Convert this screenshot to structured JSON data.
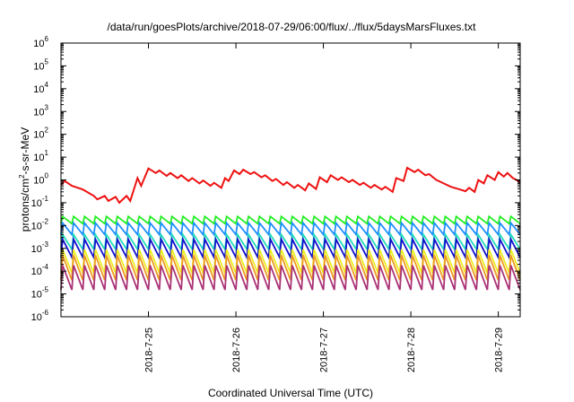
{
  "chart_data": {
    "type": "line",
    "title": "/data/run/goesPlots/archive/2018-07-29/06:00/flux/../flux/5daysMarsFluxes.txt",
    "xlabel": "Coordinated Universal Time (UTC)",
    "ylabel_parts": [
      "protons/cm",
      "2",
      "-s-sr-MeV"
    ],
    "y_scale": "log",
    "ylim": [
      1e-06,
      1000000.0
    ],
    "y_ticks": [
      {
        "base": "10",
        "exp": "6",
        "value": 1000000.0
      },
      {
        "base": "10",
        "exp": "5",
        "value": 100000.0
      },
      {
        "base": "10",
        "exp": "4",
        "value": 10000.0
      },
      {
        "base": "10",
        "exp": "3",
        "value": 1000.0
      },
      {
        "base": "10",
        "exp": "2",
        "value": 100.0
      },
      {
        "base": "10",
        "exp": "1",
        "value": 10.0
      },
      {
        "base": "10",
        "exp": "0",
        "value": 1
      },
      {
        "base": "10",
        "exp": "-1",
        "value": 0.1
      },
      {
        "base": "10",
        "exp": "-2",
        "value": 0.01
      },
      {
        "base": "10",
        "exp": "-3",
        "value": 0.001
      },
      {
        "base": "10",
        "exp": "-4",
        "value": 0.0001
      },
      {
        "base": "10",
        "exp": "-5",
        "value": 1e-05
      },
      {
        "base": "10",
        "exp": "-6",
        "value": 1e-06
      }
    ],
    "x_scale": "date",
    "xlim": [
      "2018-07-24T00:00",
      "2018-07-29T06:00"
    ],
    "x_ticks": [
      {
        "label": "2018-7-25",
        "value": "2018-07-25T00:00"
      },
      {
        "label": "2018-7-26",
        "value": "2018-07-26T00:00"
      },
      {
        "label": "2018-7-27",
        "value": "2018-07-27T00:00"
      },
      {
        "label": "2018-7-28",
        "value": "2018-07-28T00:00"
      },
      {
        "label": "2018-7-29",
        "value": "2018-07-29T00:00"
      }
    ],
    "grid": false,
    "legend": "none",
    "series": [
      {
        "color": "#ee1111",
        "points": [
          [
            "2018-07-24T00:00",
            0.6
          ],
          [
            "2018-07-24T01:00",
            0.9
          ],
          [
            "2018-07-24T03:00",
            0.55
          ],
          [
            "2018-07-24T06:00",
            0.38
          ],
          [
            "2018-07-24T09:00",
            0.2
          ],
          [
            "2018-07-24T10:00",
            0.14
          ],
          [
            "2018-07-24T12:00",
            0.2
          ],
          [
            "2018-07-24T13:00",
            0.12
          ],
          [
            "2018-07-24T15:00",
            0.18
          ],
          [
            "2018-07-24T16:00",
            0.1
          ],
          [
            "2018-07-24T18:00",
            0.2
          ],
          [
            "2018-07-24T19:00",
            0.12
          ],
          [
            "2018-07-24T21:00",
            1.2
          ],
          [
            "2018-07-24T22:00",
            0.55
          ],
          [
            "2018-07-25T00:00",
            3.2
          ],
          [
            "2018-07-25T02:00",
            2.0
          ],
          [
            "2018-07-25T03:00",
            2.6
          ],
          [
            "2018-07-25T05:00",
            1.5
          ],
          [
            "2018-07-25T06:00",
            2.0
          ],
          [
            "2018-07-25T08:00",
            1.2
          ],
          [
            "2018-07-25T09:00",
            1.6
          ],
          [
            "2018-07-25T11:00",
            0.9
          ],
          [
            "2018-07-25T12:00",
            1.2
          ],
          [
            "2018-07-25T14:00",
            0.7
          ],
          [
            "2018-07-25T15:00",
            0.95
          ],
          [
            "2018-07-25T17:00",
            0.55
          ],
          [
            "2018-07-25T18:00",
            0.75
          ],
          [
            "2018-07-25T20:00",
            0.45
          ],
          [
            "2018-07-25T21:00",
            1.2
          ],
          [
            "2018-07-25T22:00",
            0.9
          ],
          [
            "2018-07-25T23:30",
            2.6
          ],
          [
            "2018-07-26T01:00",
            1.8
          ],
          [
            "2018-07-26T02:00",
            2.8
          ],
          [
            "2018-07-26T04:00",
            1.8
          ],
          [
            "2018-07-26T05:00",
            2.2
          ],
          [
            "2018-07-26T07:00",
            1.3
          ],
          [
            "2018-07-26T08:00",
            1.6
          ],
          [
            "2018-07-26T10:00",
            0.9
          ],
          [
            "2018-07-26T11:00",
            1.1
          ],
          [
            "2018-07-26T13:00",
            0.6
          ],
          [
            "2018-07-26T14:00",
            0.8
          ],
          [
            "2018-07-26T16:00",
            0.45
          ],
          [
            "2018-07-26T17:00",
            0.6
          ],
          [
            "2018-07-26T19:00",
            0.35
          ],
          [
            "2018-07-26T20:00",
            0.7
          ],
          [
            "2018-07-26T22:00",
            0.4
          ],
          [
            "2018-07-26T23:00",
            1.3
          ],
          [
            "2018-07-27T01:00",
            0.8
          ],
          [
            "2018-07-27T02:00",
            1.6
          ],
          [
            "2018-07-27T04:00",
            1.0
          ],
          [
            "2018-07-27T05:00",
            1.3
          ],
          [
            "2018-07-27T07:00",
            0.8
          ],
          [
            "2018-07-27T08:00",
            1.0
          ],
          [
            "2018-07-27T10:00",
            0.6
          ],
          [
            "2018-07-27T11:00",
            0.75
          ],
          [
            "2018-07-27T13:00",
            0.45
          ],
          [
            "2018-07-27T14:00",
            0.6
          ],
          [
            "2018-07-27T16:00",
            0.38
          ],
          [
            "2018-07-27T17:00",
            0.5
          ],
          [
            "2018-07-27T19:00",
            0.3
          ],
          [
            "2018-07-27T20:00",
            1.2
          ],
          [
            "2018-07-27T22:00",
            0.9
          ],
          [
            "2018-07-27T23:00",
            3.4
          ],
          [
            "2018-07-28T01:00",
            2.2
          ],
          [
            "2018-07-28T02:00",
            2.8
          ],
          [
            "2018-07-28T04:00",
            1.6
          ],
          [
            "2018-07-28T05:00",
            1.8
          ],
          [
            "2018-07-28T07:00",
            1.0
          ],
          [
            "2018-07-28T09:00",
            0.7
          ],
          [
            "2018-07-28T11:00",
            0.5
          ],
          [
            "2018-07-28T13:00",
            0.4
          ],
          [
            "2018-07-28T15:00",
            0.32
          ],
          [
            "2018-07-28T16:00",
            0.45
          ],
          [
            "2018-07-28T17:30",
            0.3
          ],
          [
            "2018-07-28T18:30",
            1.0
          ],
          [
            "2018-07-28T20:00",
            0.7
          ],
          [
            "2018-07-28T21:00",
            1.6
          ],
          [
            "2018-07-28T23:00",
            1.0
          ],
          [
            "2018-07-29T00:00",
            2.2
          ],
          [
            "2018-07-29T01:30",
            1.4
          ],
          [
            "2018-07-29T02:30",
            2.0
          ],
          [
            "2018-07-29T04:00",
            1.2
          ],
          [
            "2018-07-29T05:00",
            1.0
          ],
          [
            "2018-07-29T06:00",
            0.75
          ]
        ]
      },
      {
        "color": "#22ee22",
        "sawtooth": {
          "start": "2018-07-24T00:00",
          "end": "2018-07-29T06:00",
          "period_hours": 3,
          "high": 0.025,
          "low": 0.012
        }
      },
      {
        "color": "#1e90ff",
        "sawtooth": {
          "start": "2018-07-24T00:00",
          "end": "2018-07-29T06:00",
          "period_hours": 3,
          "high": 0.013,
          "low": 0.004
        }
      },
      {
        "color": "#22ddbb",
        "sawtooth": {
          "start": "2018-07-24T00:00",
          "end": "2018-07-29T06:00",
          "period_hours": 3,
          "high": 0.004,
          "low": 0.0009
        }
      },
      {
        "color": "#1111cc",
        "sawtooth": {
          "start": "2018-07-24T00:00",
          "end": "2018-07-29T06:00",
          "period_hours": 3,
          "high": 0.0025,
          "low": 0.0004
        }
      },
      {
        "color": "#eeee22",
        "sawtooth": {
          "start": "2018-07-24T00:00",
          "end": "2018-07-29T06:00",
          "period_hours": 3,
          "high": 0.0009,
          "low": 8e-05
        }
      },
      {
        "color": "#ee9922",
        "sawtooth": {
          "start": "2018-07-24T00:00",
          "end": "2018-07-29T06:00",
          "period_hours": 3,
          "high": 0.0005,
          "low": 4e-05
        }
      },
      {
        "color": "#aa3377",
        "sawtooth": {
          "start": "2018-07-24T00:00",
          "end": "2018-07-29T06:00",
          "period_hours": 3,
          "high": 0.00018,
          "low": 1.5e-05
        }
      }
    ]
  }
}
